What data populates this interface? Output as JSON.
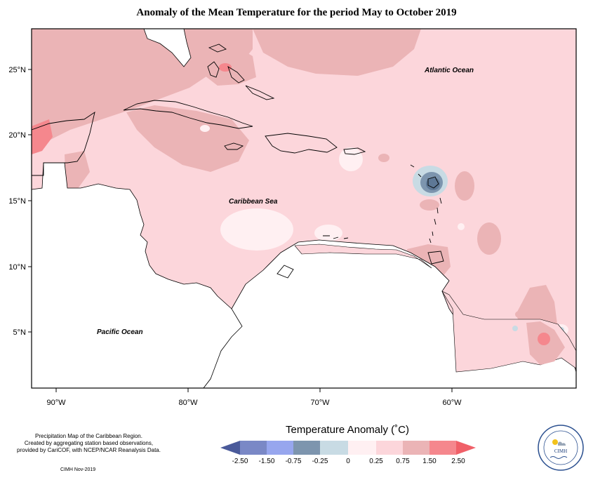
{
  "title": "Anomaly of the Mean Temperature for the period May to October 2019",
  "map": {
    "lon_ticks": [
      "90°W",
      "80°W",
      "70°W",
      "60°W"
    ],
    "lat_ticks": [
      "25°N",
      "20°N",
      "15°N",
      "10°N",
      "5°N"
    ],
    "labels": {
      "atlantic": "Atlantic Ocean",
      "caribbean": "Caribbean Sea",
      "pacific": "Pacific Ocean"
    }
  },
  "legend": {
    "title": "Temperature Anomaly (˚C)",
    "ticks": [
      "-2.50",
      "-1.50",
      "-0.75",
      "-0.25",
      "0",
      "0.25",
      "0.75",
      "1.50",
      "2.50"
    ],
    "colors": [
      "#4a5a9a",
      "#7a88c6",
      "#97a6ee",
      "#7d95ae",
      "#c8dbe4",
      "#fff0f2",
      "#fcd6db",
      "#ebb4b6",
      "#f5878d",
      "#f06068"
    ]
  },
  "credits": {
    "line1": "Precipitation Map of the Caribbean Region.",
    "line2": "Created by aggregating station based observations,",
    "line3": "provided by CariCOF, with NCEP/NCAR Reanalysis Data.",
    "date": "CIMH Nov-2019"
  },
  "logo": {
    "text": "CIMH"
  }
}
